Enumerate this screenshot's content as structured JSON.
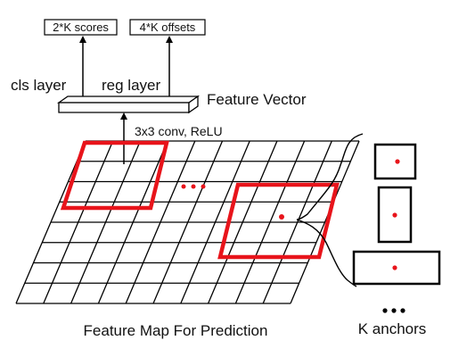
{
  "outputs": {
    "scores": "2*K scores",
    "offsets": "4*K offsets"
  },
  "layers": {
    "cls": "cls layer",
    "reg": "reg layer",
    "feature_vector": "Feature Vector",
    "conv": "3x3 conv, ReLU"
  },
  "feature_map": {
    "caption": "Feature Map For Prediction",
    "rows": 8,
    "cols": 10
  },
  "anchors": {
    "caption": "K anchors"
  },
  "colors": {
    "line": "#000000",
    "highlight": "#e8141b",
    "center_dot": "#e8141b"
  }
}
